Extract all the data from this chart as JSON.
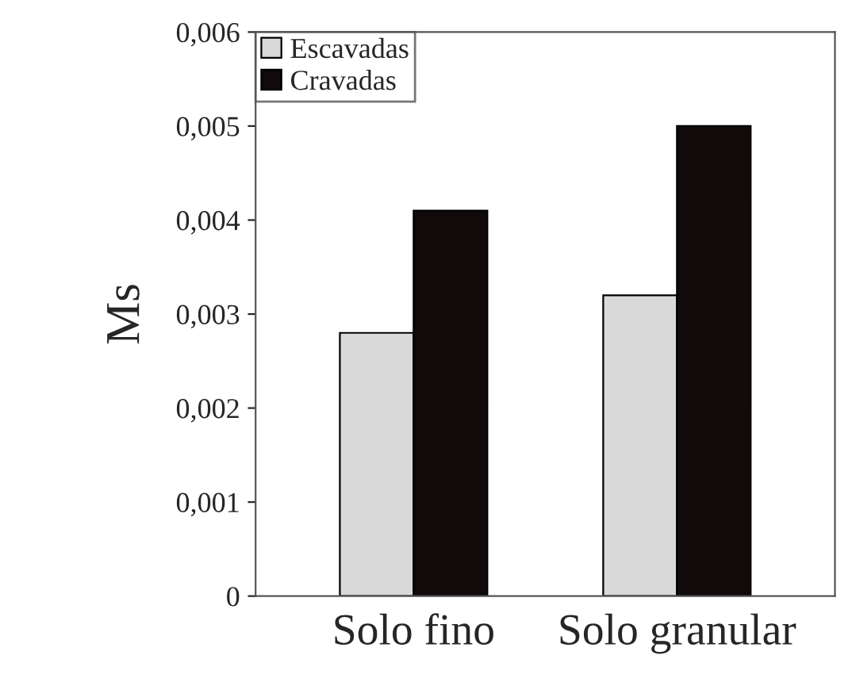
{
  "chart_data": {
    "type": "bar",
    "ylabel": "Ms",
    "categories": [
      "Solo fino",
      "Solo granular"
    ],
    "series": [
      {
        "name": "Escavadas",
        "color": "#d9d9d9",
        "values": [
          0.0028,
          0.0032
        ]
      },
      {
        "name": "Cravadas",
        "color": "#110a0a",
        "values": [
          0.0041,
          0.005
        ]
      }
    ],
    "ylim": [
      0,
      0.006
    ],
    "yticks": [
      {
        "value": 0,
        "label": "0"
      },
      {
        "value": 0.001,
        "label": "0,001"
      },
      {
        "value": 0.002,
        "label": "0,002"
      },
      {
        "value": 0.003,
        "label": "0,003"
      },
      {
        "value": 0.004,
        "label": "0,004"
      },
      {
        "value": 0.005,
        "label": "0,005"
      },
      {
        "value": 0.006,
        "label": "0,006"
      }
    ],
    "grid": false,
    "legend": "top left"
  }
}
